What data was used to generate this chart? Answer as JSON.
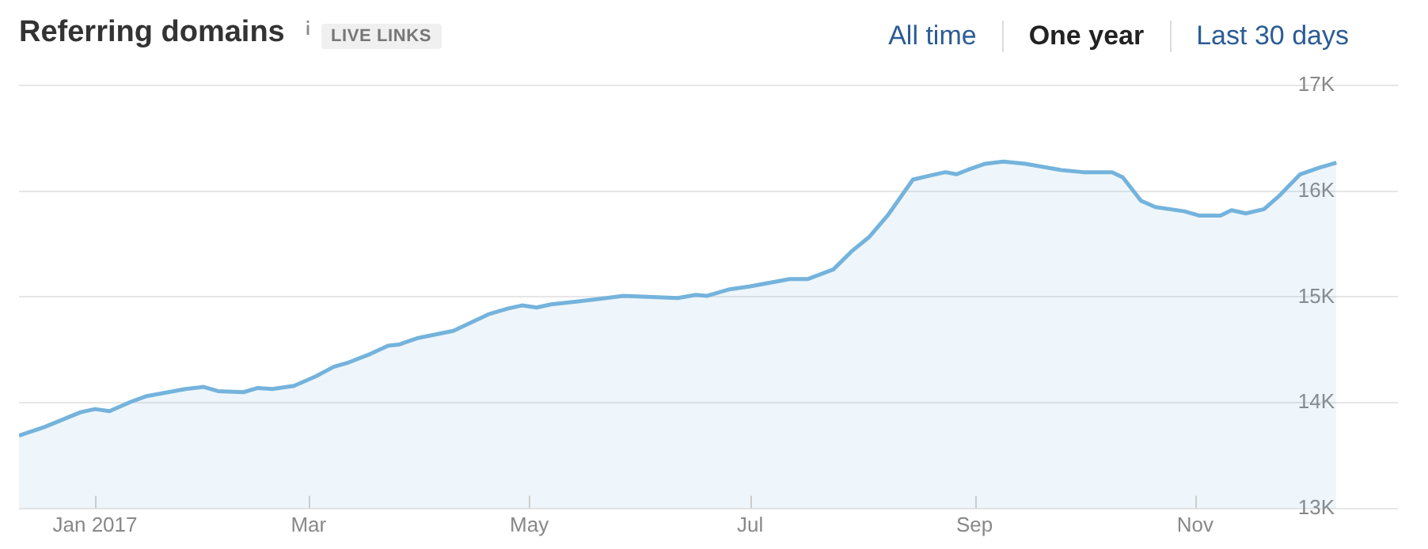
{
  "chart_data": {
    "type": "area",
    "title": "Referring domains",
    "annotations": [
      "LIVE LINKS",
      "All time",
      "One year",
      "Last 30 days"
    ],
    "x": [
      "2016-12-11",
      "2016-12-18",
      "2016-12-28",
      "2017-01-01",
      "2017-01-05",
      "2017-01-11",
      "2017-01-15",
      "2017-01-26",
      "2017-01-31",
      "2017-02-04",
      "2017-02-11",
      "2017-02-15",
      "2017-02-19",
      "2017-02-25",
      "2017-03-03",
      "2017-03-08",
      "2017-03-12",
      "2017-03-18",
      "2017-03-23",
      "2017-03-26",
      "2017-03-31",
      "2017-04-10",
      "2017-04-15",
      "2017-04-20",
      "2017-04-25",
      "2017-04-29",
      "2017-05-03",
      "2017-05-07",
      "2017-05-15",
      "2017-05-27",
      "2017-06-11",
      "2017-06-16",
      "2017-06-19",
      "2017-06-25",
      "2017-07-01",
      "2017-07-12",
      "2017-07-17",
      "2017-07-24",
      "2017-07-29",
      "2017-08-03",
      "2017-08-08",
      "2017-08-15",
      "2017-08-20",
      "2017-08-24",
      "2017-08-27",
      "2017-08-30",
      "2017-09-04",
      "2017-09-09",
      "2017-09-15",
      "2017-09-25",
      "2017-10-01",
      "2017-10-09",
      "2017-10-12",
      "2017-10-17",
      "2017-10-21",
      "2017-10-29",
      "2017-11-02",
      "2017-11-08",
      "2017-11-11",
      "2017-11-15",
      "2017-11-20",
      "2017-11-24",
      "2017-11-30",
      "2017-12-05",
      "2017-12-10"
    ],
    "series": [
      {
        "color": "#74b3dc",
        "values": [
          13690,
          13770,
          13910,
          13940,
          13920,
          14010,
          14060,
          14130,
          14150,
          14110,
          14100,
          14140,
          14130,
          14160,
          14250,
          14340,
          14380,
          14460,
          14540,
          14550,
          14610,
          14680,
          14760,
          14840,
          14890,
          14920,
          14900,
          14930,
          14960,
          15010,
          14990,
          15020,
          15010,
          15070,
          15100,
          15170,
          15170,
          15260,
          15430,
          15570,
          15770,
          16110,
          16150,
          16180,
          16160,
          16200,
          16260,
          16280,
          16260,
          16200,
          16180,
          16180,
          16130,
          15910,
          15850,
          15810,
          15770,
          15770,
          15820,
          15790,
          15830,
          15950,
          16160,
          16220,
          16270
        ]
      }
    ],
    "xlim": [
      "2016-12-11",
      "2017-12-27"
    ],
    "xticks": [
      {
        "value": "2017-01-01",
        "label": "Jan 2017"
      },
      {
        "value": "2017-03-01",
        "label": "Mar"
      },
      {
        "value": "2017-05-01",
        "label": "May"
      },
      {
        "value": "2017-07-01",
        "label": "Jul"
      },
      {
        "value": "2017-09-01",
        "label": "Sep"
      },
      {
        "value": "2017-11-01",
        "label": "Nov"
      }
    ],
    "ylim": [
      13000,
      17000
    ],
    "yticks": [
      {
        "value": 13000,
        "label": "13K"
      },
      {
        "value": 14000,
        "label": "14K"
      },
      {
        "value": 15000,
        "label": "15K"
      },
      {
        "value": 16000,
        "label": "16K"
      },
      {
        "value": 17000,
        "label": "17K"
      }
    ],
    "grid": "y"
  }
}
